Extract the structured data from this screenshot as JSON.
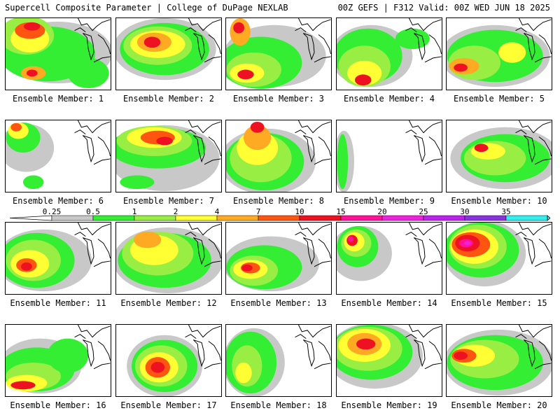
{
  "header": {
    "left": "Supercell Composite Parameter | College of DuPage NEXLAB",
    "right": "00Z GEFS | F312 Valid: 00Z WED JUN 18 2025"
  },
  "legend": {
    "ticks": [
      "0.25",
      "0.5",
      "1",
      "2",
      "4",
      "7",
      "10",
      "15",
      "20",
      "25",
      "30",
      "35"
    ],
    "colors": [
      "#c8c8c8",
      "#33ee33",
      "#99ee44",
      "#ffff33",
      "#ffaa22",
      "#ff5511",
      "#ee1122",
      "#ff1199",
      "#ee22dd",
      "#bb22ee",
      "#8833dd",
      "#33eeee"
    ]
  },
  "panels": [
    {
      "label": "Ensemble Member: 1"
    },
    {
      "label": "Ensemble Member: 2"
    },
    {
      "label": "Ensemble Member: 3"
    },
    {
      "label": "Ensemble Member: 4"
    },
    {
      "label": "Ensemble Member: 5"
    },
    {
      "label": "Ensemble Member: 6"
    },
    {
      "label": "Ensemble Member: 7"
    },
    {
      "label": "Ensemble Member: 8"
    },
    {
      "label": "Ensemble Member: 9"
    },
    {
      "label": "Ensemble Member: 10"
    },
    {
      "label": "Ensemble Member: 11"
    },
    {
      "label": "Ensemble Member: 12"
    },
    {
      "label": "Ensemble Member: 13"
    },
    {
      "label": "Ensemble Member: 14"
    },
    {
      "label": "Ensemble Member: 15"
    },
    {
      "label": "Ensemble Member: 16"
    },
    {
      "label": "Ensemble Member: 17"
    },
    {
      "label": "Ensemble Member: 18"
    },
    {
      "label": "Ensemble Member: 19"
    },
    {
      "label": "Ensemble Member: 20"
    }
  ]
}
